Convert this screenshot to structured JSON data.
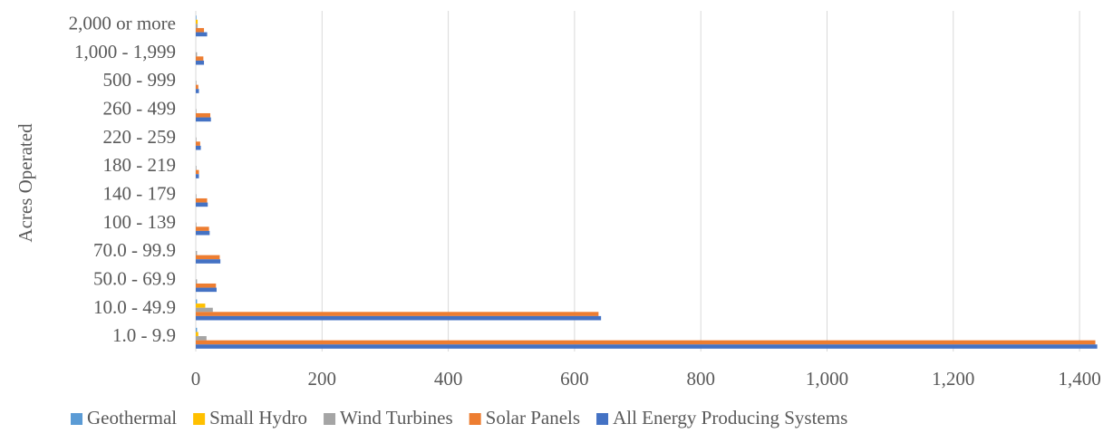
{
  "chart_data": {
    "type": "bar",
    "orientation": "horizontal",
    "ylabel": "Acres Operated",
    "xlabel": "",
    "xlim": [
      0,
      1430
    ],
    "xticks": [
      0,
      200,
      400,
      600,
      800,
      1000,
      1200,
      1400
    ],
    "xtick_labels": [
      "0",
      "200",
      "400",
      "600",
      "800",
      "1,000",
      "1,200",
      "1,400"
    ],
    "grid": "vertical",
    "legend_position": "bottom",
    "categories": [
      "1.0 - 9.9",
      "10.0 - 49.9",
      "50.0 - 69.9",
      "70.0 - 99.9",
      "100 - 139",
      "140 - 179",
      "180 - 219",
      "220 - 259",
      "260 - 499",
      "500 - 999",
      "1,000 - 1,999",
      "2,000 or more"
    ],
    "series": [
      {
        "name": "Geothermal",
        "color": "#5B9BD5",
        "values": [
          2,
          2,
          0,
          0,
          0,
          0,
          0,
          0,
          0,
          0,
          0,
          1
        ]
      },
      {
        "name": "Small Hydro",
        "color": "#FFC000",
        "values": [
          4,
          15,
          0,
          0,
          0,
          0,
          0,
          0,
          0,
          0,
          0,
          3
        ]
      },
      {
        "name": "Wind Turbines",
        "color": "#A5A5A5",
        "values": [
          17,
          27,
          2,
          2,
          1,
          1,
          1,
          1,
          1,
          1,
          2,
          3
        ]
      },
      {
        "name": "Solar Panels",
        "color": "#ED7D31",
        "values": [
          1425,
          638,
          32,
          38,
          21,
          18,
          5,
          7,
          23,
          4,
          12,
          13
        ]
      },
      {
        "name": "All Energy Producing Systems",
        "color": "#4472C4",
        "values": [
          1428,
          642,
          33,
          39,
          22,
          19,
          5,
          8,
          24,
          5,
          13,
          18
        ]
      }
    ]
  }
}
